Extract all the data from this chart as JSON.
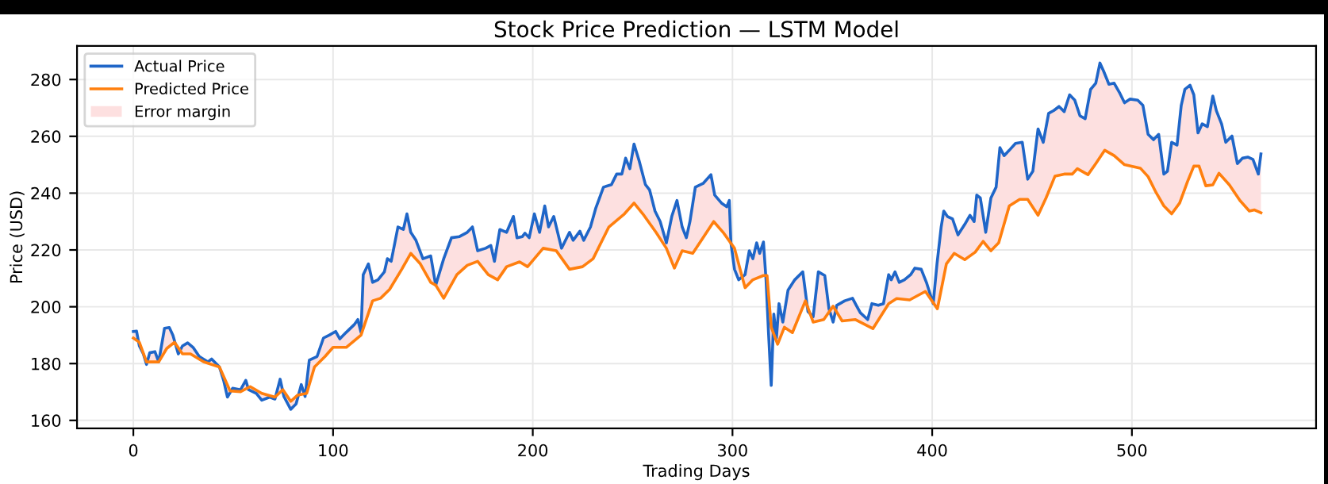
{
  "chart_data": {
    "type": "line",
    "title": "Stock Price Prediction — LSTM Model",
    "xlabel": "Trading Days",
    "ylabel": "Price (USD)",
    "xlim": [
      -28.2,
      592.2
    ],
    "ylim": [
      157.2,
      291.8
    ],
    "xticks": [
      0,
      100,
      200,
      300,
      400,
      500
    ],
    "yticks": [
      160,
      180,
      200,
      220,
      240,
      260,
      280
    ],
    "grid": true,
    "legend": "top left",
    "series": [
      {
        "name": "Actual Price",
        "color": "#1f66c8",
        "x": [
          0,
          1.6,
          3,
          5,
          6.6,
          8.2,
          10.8,
          12.7,
          15.6,
          18,
          19.8,
          22.5,
          24.6,
          27.2,
          29.9,
          33,
          37.3,
          39.2,
          43.1,
          45.2,
          47.1,
          49.7,
          53.7,
          56.3,
          57.7,
          61.6,
          64.3,
          68.3,
          70.9,
          73.5,
          75.4,
          78.8,
          81.5,
          84.1,
          86,
          88.1,
          92,
          95.2,
          98.1,
          101.3,
          103.4,
          106.6,
          110.6,
          112.4,
          114,
          115.1,
          117.7,
          119.8,
          122.5,
          125.7,
          127.2,
          129.1,
          132.5,
          135.2,
          137,
          138.9,
          141.5,
          145,
          148.9,
          151.4,
          155.4,
          159.3,
          163.3,
          167.2,
          169.8,
          172.4,
          176.4,
          179,
          180.8,
          183.5,
          186.9,
          190.3,
          192.1,
          194.8,
          196.1,
          198.2,
          200.8,
          203.4,
          206,
          207.9,
          210.5,
          214.4,
          218.4,
          220.2,
          223.6,
          225.5,
          228.9,
          231.5,
          235.4,
          239.4,
          242,
          244.6,
          246.5,
          248.6,
          250.7,
          253.3,
          256.4,
          258.5,
          261.2,
          263.8,
          266.9,
          269.6,
          272.2,
          274.8,
          276.9,
          278.7,
          281.4,
          285.3,
          289.2,
          291.1,
          294.5,
          297.1,
          298.4,
          299.2,
          301,
          303.1,
          306.3,
          308.4,
          310.2,
          312.1,
          313.6,
          315.5,
          316.8,
          318.1,
          319.4,
          320.7,
          322,
          323.3,
          325.2,
          327.8,
          331.2,
          335.2,
          337.8,
          340.4,
          343,
          346.2,
          348.3,
          350.4,
          352.2,
          356.2,
          360.1,
          362.2,
          364,
          367.7,
          369.8,
          373,
          375.6,
          378.2,
          379.5,
          381.4,
          383.5,
          386.1,
          389.2,
          391.3,
          394.5,
          397.1,
          400.5,
          402.4,
          404.5,
          405.8,
          407.6,
          410.2,
          412.9,
          416.3,
          418.9,
          421,
          422.3,
          424.1,
          426.8,
          429.4,
          432,
          433.9,
          436,
          438.6,
          441.7,
          445.1,
          447.8,
          450.4,
          453,
          455.6,
          458.3,
          460.9,
          463.5,
          466.1,
          468.8,
          471.4,
          474,
          476.6,
          479.3,
          481.9,
          484,
          485.8,
          488.5,
          491.1,
          493.7,
          496.3,
          499,
          502.9,
          505.5,
          508.1,
          510.8,
          513.4,
          516,
          517.8,
          519.9,
          522.6,
          524.7,
          526.5,
          529.1,
          531,
          533.1,
          535.2,
          537.8,
          540.5,
          542.3,
          544.9,
          547,
          550.1,
          552.8,
          555.4,
          558,
          560.6,
          563.3,
          564.6
        ],
        "values": [
          191.3,
          191.4,
          186.2,
          183.4,
          179.7,
          183.8,
          184.2,
          180.6,
          192.4,
          192.7,
          190,
          183.4,
          186.2,
          187.3,
          185.7,
          182.5,
          180.6,
          181.6,
          178.8,
          174.1,
          168.2,
          171.3,
          170.8,
          174.1,
          170.8,
          169.5,
          167.1,
          168.2,
          167.5,
          174.5,
          168.4,
          163.9,
          165.8,
          172.6,
          168.4,
          181.2,
          182.5,
          189,
          190,
          191.3,
          188.7,
          191,
          193.7,
          195.5,
          191,
          211.3,
          215.1,
          208.6,
          209.5,
          212.3,
          216.9,
          216,
          228.1,
          227.2,
          232.7,
          226.2,
          223.4,
          216.9,
          217.9,
          207.6,
          216.9,
          224.3,
          224.7,
          226.2,
          228.1,
          219.7,
          220.6,
          221.6,
          216,
          227.2,
          226.2,
          231.8,
          224.3,
          224.7,
          225.9,
          224.3,
          232.7,
          226.2,
          235.5,
          228.1,
          231.8,
          220.6,
          226.2,
          223.4,
          226.6,
          223.4,
          228.1,
          234.6,
          242.1,
          243,
          246.7,
          246.7,
          252.3,
          248.6,
          257.3,
          251.3,
          243,
          241.1,
          233.7,
          230,
          222.5,
          231.8,
          237.4,
          228.1,
          224.3,
          230,
          242.1,
          243.4,
          246.5,
          239.3,
          236.5,
          235.2,
          237.4,
          222.5,
          213.2,
          209.5,
          211.3,
          219.7,
          216.9,
          222.5,
          218.8,
          222.8,
          209.5,
          190,
          172.3,
          197.4,
          189,
          201.1,
          194.6,
          205.8,
          209.5,
          212.3,
          198.3,
          196.5,
          212.3,
          211,
          199.3,
          194.6,
          200.5,
          202.1,
          203,
          200.2,
          197.9,
          195.5,
          201.1,
          200.5,
          201.1,
          211.3,
          209.5,
          212.3,
          208.6,
          209.5,
          211.3,
          213.6,
          213.2,
          208.6,
          201.1,
          215.1,
          228.1,
          233.7,
          231.8,
          230.9,
          225.3,
          229,
          232.2,
          230,
          239.3,
          238.3,
          226.2,
          238.3,
          242.1,
          256,
          253.2,
          255.1,
          257.5,
          257.9,
          244.9,
          247.7,
          262.6,
          257.9,
          268.1,
          269.1,
          270.5,
          268.7,
          274.6,
          272.7,
          267.2,
          266.2,
          276.5,
          278.7,
          285.8,
          283,
          278.3,
          278.7,
          275.5,
          271.8,
          273.1,
          272.7,
          270.9,
          260.7,
          258.8,
          260.7,
          246.7,
          247.7,
          257.9,
          256.9,
          270.9,
          276.5,
          278,
          274.6,
          261.2,
          264.4,
          263.4,
          274.2,
          269,
          264.4,
          257.9,
          260.1,
          250.4,
          252.3,
          252.7,
          251.9,
          246.7,
          253.8
        ]
      },
      {
        "name": "Predicted Price",
        "color": "#ff7f0e",
        "x": [
          0,
          3,
          6.6,
          12.7,
          16.7,
          20.6,
          24.6,
          28.6,
          35.2,
          43.1,
          48.4,
          53.7,
          58.5,
          64.3,
          70.9,
          74.9,
          78.8,
          82.3,
          86.8,
          90.7,
          96,
          100,
          106.6,
          114,
          119.8,
          123.8,
          128.3,
          134.4,
          138.9,
          143.7,
          148.9,
          151.4,
          155.4,
          162,
          167.2,
          172.4,
          177.7,
          182.4,
          186.9,
          193.4,
          197.4,
          205.2,
          211.8,
          218.4,
          224.9,
          230.2,
          238.1,
          245.9,
          250.7,
          255.1,
          261.7,
          266.9,
          270.9,
          274.8,
          280.1,
          285.3,
          290.6,
          295.3,
          301,
          306.3,
          310.2,
          315.5,
          317.3,
          319.4,
          322.6,
          326,
          330,
          336.5,
          340.4,
          345.7,
          350.4,
          354.9,
          361.4,
          370.3,
          378.2,
          382.2,
          388.7,
          396.6,
          402.6,
          407.1,
          411,
          416.3,
          421.5,
          425.5,
          429.4,
          433.3,
          438.6,
          443.8,
          447.8,
          453,
          457,
          461.5,
          466.1,
          470.1,
          472.7,
          478,
          481.9,
          486.4,
          491.1,
          496.3,
          504.2,
          508.1,
          512.1,
          516,
          519.9,
          523.9,
          527.8,
          531,
          533.6,
          537,
          540.5,
          543.6,
          548.8,
          554.1,
          558.8,
          561.4,
          564.6
        ],
        "values": [
          189,
          187.5,
          180.6,
          180.6,
          185.3,
          187.5,
          183.4,
          183.4,
          180.6,
          178.8,
          170.4,
          170.1,
          171.9,
          169.5,
          168.2,
          170.8,
          166.7,
          168.9,
          169.5,
          178.8,
          182.5,
          185.7,
          185.7,
          190,
          202.1,
          203,
          206.1,
          213.2,
          218.8,
          215.1,
          208.6,
          207.6,
          203,
          211.3,
          214.6,
          216,
          211.3,
          209.5,
          214.1,
          215.8,
          214.1,
          220.6,
          219.7,
          213.2,
          214.1,
          216.9,
          228.1,
          232.7,
          236.5,
          232.7,
          226.2,
          220.6,
          213.6,
          219.7,
          218.8,
          224.3,
          230,
          226.2,
          220.6,
          206.7,
          209.5,
          211,
          211,
          192.8,
          186.8,
          192.8,
          190.9,
          202.1,
          194.6,
          195.5,
          200.2,
          195,
          195.5,
          192.3,
          201.1,
          202.9,
          202.4,
          205.4,
          199.3,
          215.1,
          218.8,
          216.6,
          219.2,
          223,
          219.7,
          222.5,
          235.5,
          237.8,
          237.8,
          232.2,
          238.3,
          246,
          246.7,
          246.7,
          248.6,
          246.5,
          250.4,
          255.1,
          253.2,
          250,
          248.8,
          245.8,
          240.2,
          235.5,
          232.7,
          236.5,
          244,
          249.5,
          249.5,
          242.6,
          242.9,
          247,
          242.9,
          237.4,
          233.7,
          234.1,
          233.1
        ]
      },
      {
        "name": "Error margin",
        "type": "area",
        "color": "#fde0e0"
      }
    ]
  }
}
